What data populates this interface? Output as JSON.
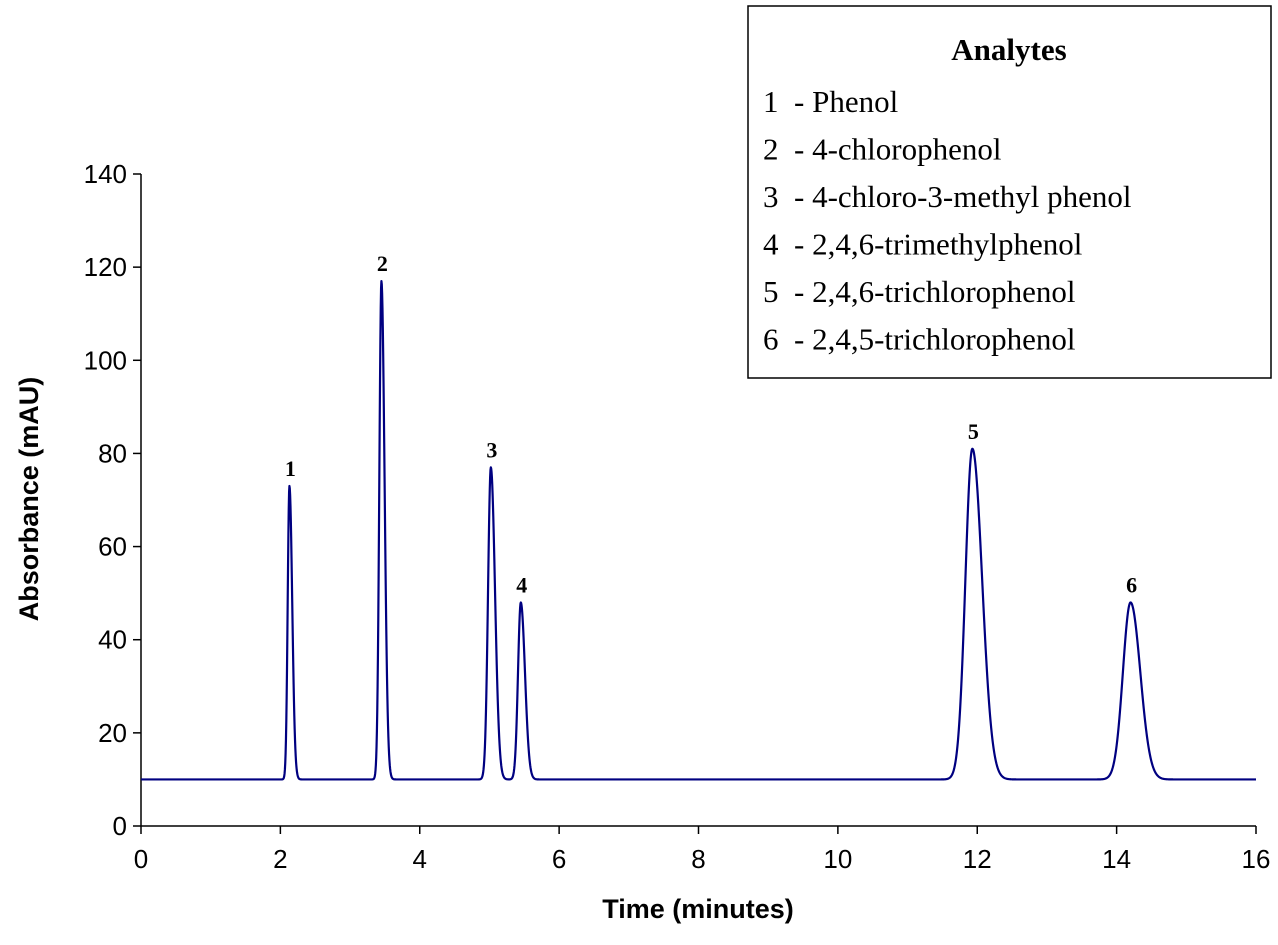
{
  "chart_data": {
    "type": "line",
    "xlabel": "Time (minutes)",
    "ylabel": "Absorbance (mAU)",
    "xlim": [
      0,
      16
    ],
    "ylim": [
      0,
      140
    ],
    "xticks": [
      0,
      2,
      4,
      6,
      8,
      10,
      12,
      14,
      16
    ],
    "yticks": [
      0,
      20,
      40,
      60,
      80,
      100,
      120,
      140
    ],
    "grid": false,
    "line_color": "#000080",
    "baseline": 10,
    "series": [
      {
        "peaks": [
          {
            "label": "1",
            "time": 2.13,
            "height": 73
          },
          {
            "label": "2",
            "time": 3.45,
            "height": 117
          },
          {
            "label": "3",
            "time": 5.02,
            "height": 77
          },
          {
            "label": "4",
            "time": 5.45,
            "height": 48
          },
          {
            "label": "5",
            "time": 11.93,
            "height": 81
          },
          {
            "label": "6",
            "time": 14.2,
            "height": 48
          }
        ]
      }
    ],
    "legend": {
      "title": "Analytes",
      "position": "top-right",
      "items": [
        "1  - Phenol",
        "2  - 4-chlorophenol",
        "3  - 4-chloro-3-methyl phenol",
        "4  - 2,4,6-trimethylphenol",
        "5  - 2,4,6-trichlorophenol",
        "6  - 2,4,5-trichlorophenol"
      ]
    }
  }
}
